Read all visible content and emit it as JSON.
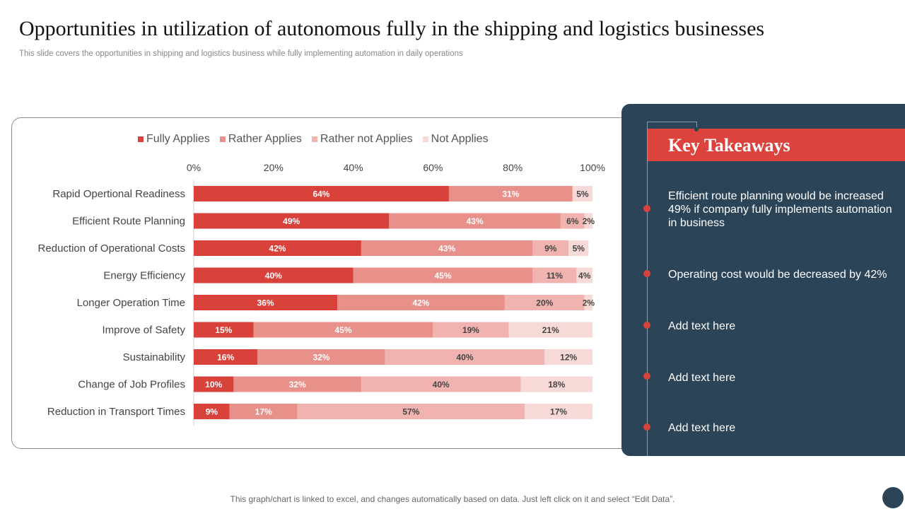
{
  "title": "Opportunities in utilization of autonomous fully in the shipping and logistics businesses",
  "subtitle": "This slide covers the opportunities in shipping and logistics business while fully implementing automation in daily operations",
  "chart_data": {
    "type": "bar",
    "orientation": "horizontal",
    "stacked": true,
    "xlim": [
      0,
      100
    ],
    "x_ticks": [
      "0%",
      "20%",
      "40%",
      "60%",
      "80%",
      "100%"
    ],
    "legend_position": "top",
    "grid": false,
    "categories": [
      "Rapid Opertional Readiness",
      "Efficient Route Planning",
      "Reduction of Operational Costs",
      "Energy Efficiency",
      "Longer Operation Time",
      "Improve of Safety",
      "Sustainability",
      "Change of Job Profiles",
      "Reduction in Transport Times"
    ],
    "series": [
      {
        "name": "Fully Applies",
        "color": "#d9413b",
        "values": [
          64,
          49,
          42,
          40,
          36,
          15,
          16,
          10,
          9
        ]
      },
      {
        "name": "Rather Applies",
        "color": "#e8908a",
        "values": [
          31,
          43,
          43,
          45,
          42,
          45,
          32,
          32,
          17
        ]
      },
      {
        "name": "Rather not Applies",
        "color": "#f0b3b0",
        "values": [
          0,
          6,
          9,
          11,
          20,
          19,
          40,
          40,
          57
        ]
      },
      {
        "name": "Not Applies",
        "color": "#f7d9d8",
        "values": [
          5,
          2,
          5,
          4,
          2,
          21,
          12,
          18,
          17
        ]
      }
    ]
  },
  "takeaways": {
    "title": "Key Takeaways",
    "items": [
      "Efficient route planning would be increased 49% if company fully implements automation in business",
      "Operating cost would be decreased by 42%",
      "Add text here",
      "Add text here",
      "Add text here"
    ]
  },
  "footer": "This graph/chart is linked to excel, and changes automatically based on data. Just left click on it and select “Edit Data”."
}
